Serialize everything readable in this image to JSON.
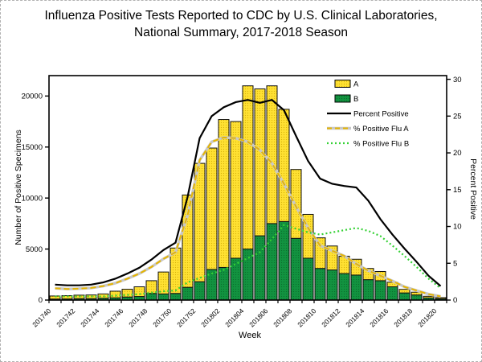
{
  "page": {
    "title_line1": "Influenza Positive Tests Reported to CDC by U.S. Clinical Laboratories,",
    "title_line2": "National Summary, 2017-2018 Season"
  },
  "chart_data": {
    "type": "bar",
    "subtype": "stacked-bar-with-lines",
    "title": "Influenza Positive Tests Reported to CDC by U.S. Clinical Laboratories, National Summary, 2017-2018 Season",
    "xlabel": "Week",
    "ylabel_left": "Number of Positive Specimens",
    "ylabel_right": "Percent Positive",
    "ylim_left": [
      0,
      22000
    ],
    "ylim_right": [
      0,
      30.5
    ],
    "yticks_left": [
      0,
      5000,
      10000,
      15000,
      20000
    ],
    "yticks_right": [
      0,
      5,
      10,
      15,
      20,
      25,
      30
    ],
    "grid": false,
    "legend_position": "inside-upper-right",
    "x_label_every": 2,
    "weeks": [
      "201740",
      "201741",
      "201742",
      "201743",
      "201744",
      "201745",
      "201746",
      "201747",
      "201748",
      "201749",
      "201750",
      "201751",
      "201752",
      "201801",
      "201802",
      "201803",
      "201804",
      "201805",
      "201806",
      "201807",
      "201808",
      "201809",
      "201810",
      "201811",
      "201812",
      "201813",
      "201814",
      "201815",
      "201816",
      "201817",
      "201818",
      "201819",
      "201820"
    ],
    "bar_series": [
      {
        "name": "A",
        "stack_order": "top",
        "color": "#ffe133",
        "dot_color": "#d8b40a",
        "values": [
          300,
          320,
          340,
          360,
          420,
          650,
          760,
          950,
          1250,
          2150,
          4450,
          9050,
          11600,
          11900,
          14500,
          13400,
          16000,
          14400,
          13500,
          11000,
          6750,
          4300,
          3000,
          2350,
          1700,
          1550,
          1100,
          900,
          450,
          350,
          270,
          160,
          110
        ]
      },
      {
        "name": "B",
        "stack_order": "bottom",
        "color": "#129340",
        "dot_color": "#0a6e2d",
        "values": [
          100,
          110,
          140,
          140,
          180,
          220,
          300,
          350,
          650,
          600,
          650,
          1250,
          1800,
          3000,
          3200,
          4100,
          5000,
          6300,
          7500,
          7700,
          6050,
          4100,
          3100,
          2950,
          2600,
          2450,
          2000,
          1900,
          1300,
          700,
          500,
          210,
          130
        ]
      }
    ],
    "line_series": [
      {
        "name": "Percent Positive",
        "axis": "right",
        "color": "#000000",
        "style": "solid",
        "values": [
          2.1,
          2.0,
          2.0,
          2.1,
          2.4,
          2.9,
          3.6,
          4.4,
          5.5,
          6.8,
          7.8,
          14.0,
          22.0,
          25.0,
          26.2,
          26.9,
          27.2,
          26.8,
          27.2,
          25.8,
          22.3,
          18.9,
          16.5,
          15.8,
          15.5,
          15.3,
          13.5,
          11.0,
          8.9,
          7.0,
          5.2,
          3.3,
          1.9
        ]
      },
      {
        "name": "% Positive Flu A",
        "axis": "right",
        "color": "#e6b500",
        "style": "dashed",
        "halo": "#c8c8c8",
        "values": [
          1.6,
          1.5,
          1.55,
          1.65,
          1.9,
          2.3,
          2.9,
          3.6,
          4.5,
          5.6,
          6.5,
          11.5,
          19.0,
          21.5,
          22.1,
          22.0,
          21.5,
          20.4,
          18.6,
          15.8,
          12.7,
          9.8,
          7.4,
          6.7,
          6.0,
          4.9,
          4.0,
          3.3,
          2.6,
          1.8,
          1.3,
          0.8,
          0.5
        ]
      },
      {
        "name": "% Positive Flu B",
        "axis": "right",
        "color": "#35d135",
        "style": "dotted",
        "values": [
          0.5,
          0.5,
          0.5,
          0.5,
          0.5,
          0.6,
          0.7,
          0.8,
          1.0,
          1.2,
          1.3,
          2.4,
          3.0,
          3.6,
          4.1,
          4.9,
          5.7,
          6.5,
          8.3,
          10.2,
          9.7,
          9.2,
          8.9,
          9.2,
          9.5,
          9.8,
          9.4,
          8.7,
          7.4,
          6.0,
          4.5,
          2.9,
          1.6
        ]
      }
    ]
  }
}
